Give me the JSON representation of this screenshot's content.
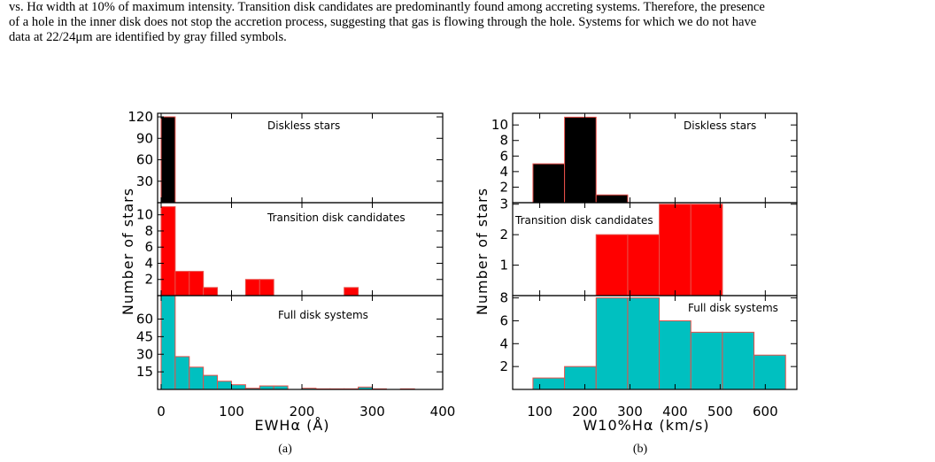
{
  "caption": {
    "line1": "vs. Hα width at 10% of maximum intensity. Transition disk candidates are predominantly found among accreting systems. Therefore, the presence",
    "line2": "of a hole in the inner disk does not stop the accretion process, suggesting that gas is flowing through the hole. Systems for which we do not have",
    "line3": "data at 22/24μm are identified by gray filled symbols."
  },
  "chart_data": [
    {
      "type": "bar",
      "label": "(a)",
      "xlabel": "EW_Hα (Å)",
      "ylabel": "Number of stars",
      "xlim": [
        -5,
        400
      ],
      "xticks": [
        0,
        100,
        200,
        300,
        400
      ],
      "bin_width": 20,
      "panels": [
        {
          "name": "Diskless stars",
          "color": "#000000",
          "ylim": [
            0,
            125
          ],
          "yticks": [
            30,
            60,
            90,
            120
          ],
          "bins": [
            {
              "x": 0,
              "value": 120
            }
          ]
        },
        {
          "name": "Transition disk candidates",
          "color": "#ff0000",
          "ylim": [
            0,
            11.5
          ],
          "yticks": [
            2,
            4,
            6,
            8,
            10
          ],
          "bins": [
            {
              "x": 0,
              "value": 11
            },
            {
              "x": 20,
              "value": 3
            },
            {
              "x": 40,
              "value": 3
            },
            {
              "x": 60,
              "value": 1
            },
            {
              "x": 120,
              "value": 2
            },
            {
              "x": 140,
              "value": 2
            },
            {
              "x": 260,
              "value": 1
            }
          ]
        },
        {
          "name": "Full disk systems",
          "color": "#00c0c0",
          "ylim": [
            0,
            80
          ],
          "yticks": [
            15,
            30,
            45,
            60
          ],
          "bins": [
            {
              "x": 0,
              "value": 80
            },
            {
              "x": 20,
              "value": 28
            },
            {
              "x": 40,
              "value": 19
            },
            {
              "x": 60,
              "value": 12
            },
            {
              "x": 80,
              "value": 7
            },
            {
              "x": 100,
              "value": 4
            },
            {
              "x": 120,
              "value": 1
            },
            {
              "x": 140,
              "value": 3
            },
            {
              "x": 160,
              "value": 3
            },
            {
              "x": 200,
              "value": 1
            },
            {
              "x": 220,
              "value": 0.5
            },
            {
              "x": 240,
              "value": 0.5
            },
            {
              "x": 260,
              "value": 0.5
            },
            {
              "x": 280,
              "value": 2
            },
            {
              "x": 300,
              "value": 0.5
            },
            {
              "x": 340,
              "value": 0.5
            }
          ]
        }
      ]
    },
    {
      "type": "bar",
      "label": "(b)",
      "xlabel": "W10%_Hα (km/s)",
      "ylabel": "Number of stars",
      "xlim": [
        40,
        670
      ],
      "xticks": [
        100,
        200,
        300,
        400,
        500,
        600
      ],
      "bin_width": 70,
      "panels": [
        {
          "name": "Diskless stars",
          "color": "#000000",
          "ylim": [
            0,
            11.5
          ],
          "yticks": [
            2,
            4,
            6,
            8,
            10
          ],
          "bins": [
            {
              "x": 85,
              "value": 5
            },
            {
              "x": 155,
              "value": 11
            },
            {
              "x": 225,
              "value": 1
            }
          ]
        },
        {
          "name": "Transition disk candidates",
          "color": "#ff0000",
          "ylim": [
            0,
            3.05
          ],
          "yticks": [
            1,
            2,
            3
          ],
          "bins": [
            {
              "x": 225,
              "value": 2
            },
            {
              "x": 295,
              "value": 2
            },
            {
              "x": 365,
              "value": 3
            },
            {
              "x": 435,
              "value": 3
            }
          ]
        },
        {
          "name": "Full disk systems",
          "color": "#00c0c0",
          "ylim": [
            0,
            8.2
          ],
          "yticks": [
            2,
            4,
            6,
            8
          ],
          "bins": [
            {
              "x": 85,
              "value": 1
            },
            {
              "x": 155,
              "value": 2
            },
            {
              "x": 225,
              "value": 8
            },
            {
              "x": 295,
              "value": 8
            },
            {
              "x": 365,
              "value": 6
            },
            {
              "x": 435,
              "value": 5
            },
            {
              "x": 505,
              "value": 5
            },
            {
              "x": 575,
              "value": 3
            }
          ]
        }
      ]
    }
  ]
}
